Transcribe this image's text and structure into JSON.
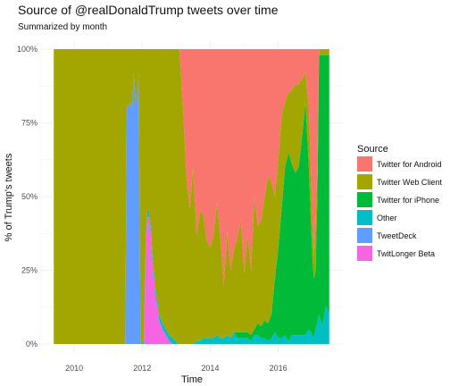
{
  "chart_data": {
    "type": "area",
    "stacked": true,
    "title": "Source of @realDonaldTrump tweets over time",
    "subtitle": "Summarized by month",
    "xlabel": "Time",
    "ylabel": "% of Trump's tweets",
    "x_ticks": [
      "2010",
      "2012",
      "2014",
      "2016"
    ],
    "y_ticks": [
      "0%",
      "25%",
      "50%",
      "75%",
      "100%"
    ],
    "xlim": [
      2009.0,
      2017.9
    ],
    "ylim": [
      0,
      100
    ],
    "grid": true,
    "legend_title": "Source",
    "legend_position": "right",
    "stack_order": [
      "Twitter for Android",
      "Twitter Web Client",
      "Twitter for iPhone",
      "Other",
      "TweetDeck",
      "TwitLonger Beta"
    ],
    "x": [
      2009.4,
      2011.5,
      2011.55,
      2011.6,
      2011.65,
      2011.7,
      2011.75,
      2011.8,
      2011.85,
      2011.9,
      2011.95,
      2012.0,
      2012.05,
      2012.1,
      2012.15,
      2012.2,
      2012.25,
      2012.3,
      2012.35,
      2012.4,
      2012.45,
      2012.5,
      2012.6,
      2012.7,
      2012.8,
      2012.9,
      2013.0,
      2013.05,
      2013.1,
      2013.2,
      2013.3,
      2013.4,
      2013.5,
      2013.6,
      2013.7,
      2013.8,
      2013.9,
      2014.0,
      2014.1,
      2014.2,
      2014.3,
      2014.4,
      2014.5,
      2014.6,
      2014.7,
      2014.8,
      2014.9,
      2015.0,
      2015.1,
      2015.2,
      2015.3,
      2015.4,
      2015.5,
      2015.6,
      2015.7,
      2015.8,
      2015.9,
      2016.0,
      2016.1,
      2016.2,
      2016.3,
      2016.4,
      2016.5,
      2016.6,
      2016.7,
      2016.8,
      2016.9,
      2017.0,
      2017.05,
      2017.1,
      2017.15,
      2017.2,
      2017.3,
      2017.4,
      2017.5
    ],
    "series": [
      {
        "name": "Twitter for Android",
        "color": "#F8766D",
        "values": [
          0,
          0,
          0,
          0,
          0,
          0,
          0,
          0,
          0,
          0,
          0,
          0,
          0,
          0,
          0,
          0,
          0,
          0,
          0,
          0,
          0,
          0,
          0,
          0,
          0,
          0,
          0,
          0,
          0,
          20,
          43,
          54,
          40,
          63,
          55,
          56,
          65,
          67,
          63,
          52,
          64,
          80,
          62,
          75,
          68,
          64,
          58,
          76,
          63,
          75,
          50,
          60,
          58,
          50,
          43,
          45,
          50,
          38,
          22,
          18,
          15,
          14,
          12,
          12,
          10,
          8,
          20,
          55,
          70,
          60,
          40,
          0,
          0,
          0,
          0
        ]
      },
      {
        "name": "Twitter Web Client",
        "color": "#A3A500",
        "values": [
          100,
          100,
          20,
          19,
          18,
          21,
          8,
          18,
          17,
          8,
          100,
          100,
          98,
          68,
          55,
          55,
          60,
          70,
          76,
          82,
          85,
          90,
          93,
          95,
          97,
          98,
          99,
          100,
          100,
          80,
          57,
          46,
          60,
          36,
          44,
          42,
          33,
          31,
          35,
          45,
          34,
          18,
          35,
          23,
          28,
          32,
          38,
          20,
          33,
          22,
          45,
          33,
          36,
          42,
          50,
          45,
          28,
          30,
          32,
          22,
          20,
          25,
          30,
          28,
          20,
          10,
          20,
          15,
          8,
          15,
          10,
          2,
          2,
          2,
          2
        ]
      },
      {
        "name": "Twitter for iPhone",
        "color": "#00BA38",
        "values": [
          0,
          0,
          0,
          0,
          0,
          0,
          0,
          0,
          0,
          0,
          0,
          0,
          0,
          0,
          0,
          0,
          0,
          0,
          0,
          0,
          0,
          0,
          0,
          0,
          0,
          0,
          0,
          0,
          0,
          0,
          0,
          0,
          0,
          0,
          0,
          0,
          0,
          0,
          0,
          0,
          0,
          0,
          0,
          0,
          0,
          2,
          2,
          2,
          2,
          2,
          2,
          4,
          4,
          6,
          6,
          8,
          18,
          30,
          44,
          57,
          64,
          58,
          55,
          57,
          67,
          79,
          55,
          27,
          20,
          20,
          43,
          88,
          92,
          85,
          88
        ]
      },
      {
        "name": "Other",
        "color": "#00BFC4",
        "values": [
          0,
          0,
          0,
          0,
          0,
          0,
          0,
          0,
          0,
          0,
          0,
          0,
          2,
          2,
          2,
          2,
          2,
          2,
          2,
          2,
          2,
          2,
          2,
          2,
          2,
          2,
          1,
          0,
          0,
          0,
          0,
          0,
          0,
          1,
          1,
          2,
          2,
          2,
          2,
          3,
          2,
          2,
          3,
          2,
          4,
          2,
          2,
          2,
          2,
          1,
          3,
          3,
          2,
          2,
          1,
          2,
          4,
          2,
          2,
          3,
          1,
          3,
          3,
          3,
          3,
          3,
          5,
          3,
          2,
          5,
          7,
          10,
          6,
          13,
          10
        ]
      },
      {
        "name": "TweetDeck",
        "color": "#619CFF",
        "values": [
          0,
          0,
          80,
          81,
          82,
          79,
          92,
          82,
          83,
          92,
          0,
          0,
          0,
          0,
          0,
          0,
          0,
          0,
          0,
          0,
          0,
          0,
          0,
          0,
          0,
          0,
          0,
          0,
          0,
          0,
          0,
          0,
          0,
          0,
          0,
          0,
          0,
          0,
          0,
          0,
          0,
          0,
          0,
          0,
          0,
          0,
          0,
          0,
          0,
          0,
          0,
          0,
          0,
          0,
          0,
          0,
          0,
          0,
          0,
          0,
          0,
          0,
          0,
          0,
          0,
          0,
          0,
          0,
          0,
          0,
          0,
          0,
          0,
          0,
          0
        ]
      },
      {
        "name": "TwitLonger Beta",
        "color": "#F564E3",
        "values": [
          0,
          0,
          0,
          0,
          0,
          0,
          0,
          0,
          0,
          0,
          0,
          0,
          0,
          30,
          43,
          43,
          38,
          28,
          22,
          16,
          13,
          8,
          5,
          3,
          1,
          0,
          0,
          0,
          0,
          0,
          0,
          0,
          0,
          0,
          0,
          0,
          0,
          0,
          0,
          0,
          0,
          0,
          0,
          0,
          0,
          0,
          0,
          0,
          0,
          0,
          0,
          0,
          0,
          0,
          0,
          0,
          0,
          0,
          0,
          0,
          0,
          0,
          0,
          0,
          0,
          0,
          0,
          0,
          0,
          0,
          0,
          0,
          0,
          0,
          0
        ]
      }
    ]
  }
}
